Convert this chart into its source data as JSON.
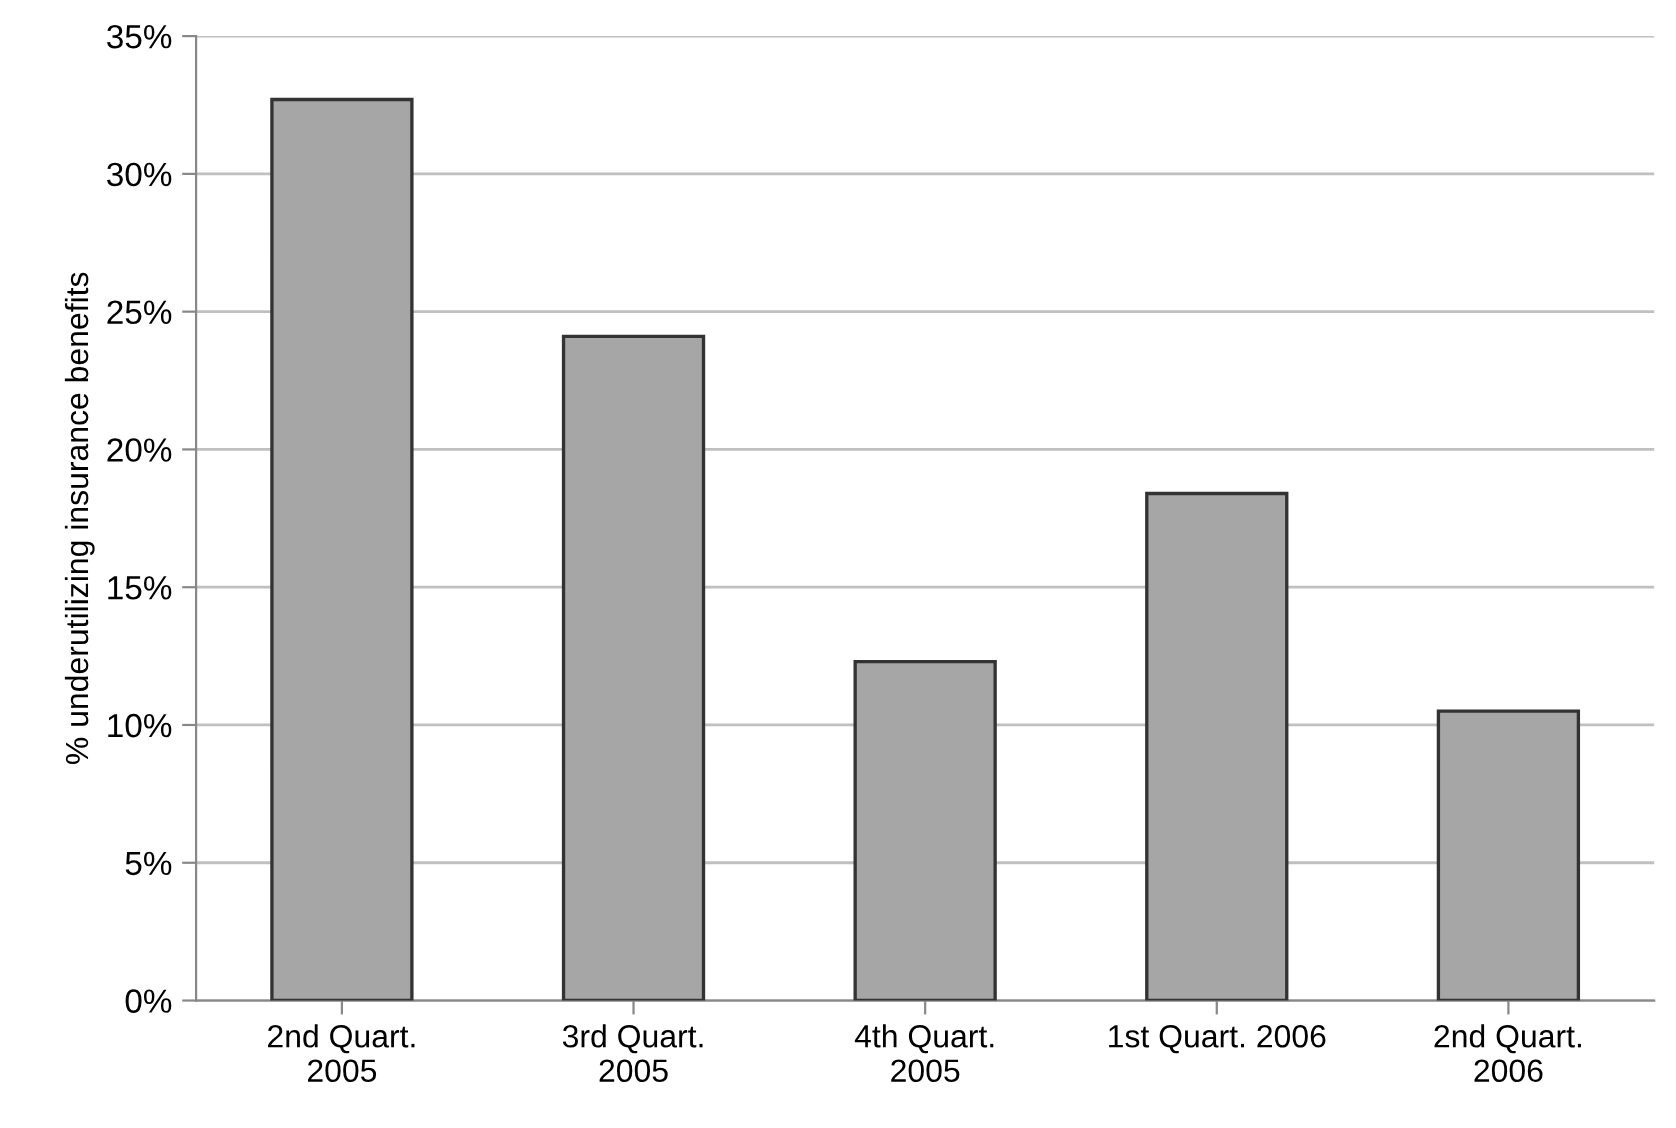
{
  "chart_data": {
    "type": "bar",
    "ylabel": "% underutilizing insurance benefits",
    "categories": [
      "2nd Quart.\n2005",
      "3rd Quart.\n2005",
      "4th Quart.\n2005",
      "1st Quart. 2006",
      "2nd Quart.\n2006"
    ],
    "values": [
      32.7,
      24.1,
      12.3,
      18.4,
      10.5
    ],
    "color": "#a6a6a6",
    "ylim": [
      0,
      35
    ],
    "yticks": [
      {
        "value": 0,
        "label": "0%"
      },
      {
        "value": 5,
        "label": "5%"
      },
      {
        "value": 10,
        "label": "10%"
      },
      {
        "value": 15,
        "label": "15%"
      },
      {
        "value": 20,
        "label": "20%"
      },
      {
        "value": 25,
        "label": "25%"
      },
      {
        "value": 30,
        "label": "30%"
      },
      {
        "value": 35,
        "label": "35%"
      }
    ],
    "grid": "y"
  }
}
